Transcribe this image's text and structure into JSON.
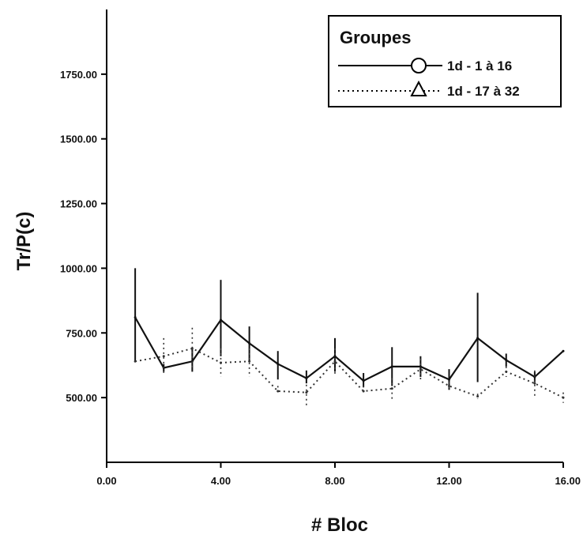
{
  "chart_data": {
    "type": "line",
    "xlabel": "# Bloc",
    "ylabel": "Tr/P(c)",
    "xlim": [
      0,
      16
    ],
    "ylim": [
      250,
      2000
    ],
    "x_ticks": [
      0,
      4,
      8,
      12,
      16
    ],
    "x_tick_labels": [
      "0.00",
      "4.00",
      "8.00",
      "12.00",
      "16.00"
    ],
    "y_ticks": [
      500,
      750,
      1000,
      1250,
      1500,
      1750
    ],
    "y_tick_labels": [
      "500.00",
      "750.00",
      "1000.00",
      "1250.00",
      "1500.00",
      "1750.00"
    ],
    "grid": false,
    "legend": {
      "title": "Groupes",
      "position": "top-right"
    },
    "x": [
      1,
      2,
      3,
      4,
      5,
      6,
      7,
      8,
      9,
      10,
      11,
      12,
      13,
      14,
      15,
      16
    ],
    "series": [
      {
        "name": "1d - 1 à 16",
        "style": "solid",
        "marker": "circle",
        "values": [
          810,
          615,
          640,
          800,
          710,
          630,
          575,
          660,
          565,
          620,
          620,
          570,
          730,
          645,
          580,
          680
        ],
        "error_low": [
          640,
          600,
          600,
          660,
          640,
          570,
          555,
          600,
          540,
          545,
          580,
          530,
          560,
          620,
          560,
          680
        ],
        "error_high": [
          1000,
          630,
          690,
          955,
          775,
          680,
          605,
          730,
          595,
          695,
          660,
          610,
          905,
          670,
          600,
          680
        ],
        "color": "#111111"
      },
      {
        "name": "1d - 17 à 32",
        "style": "dotted",
        "marker": "triangle",
        "values": [
          640,
          660,
          690,
          635,
          640,
          525,
          520,
          640,
          525,
          535,
          610,
          545,
          505,
          600,
          555,
          500
        ],
        "error_low": [
          640,
          590,
          610,
          580,
          580,
          510,
          470,
          590,
          510,
          495,
          560,
          530,
          495,
          580,
          500,
          480
        ],
        "error_high": [
          640,
          730,
          770,
          690,
          690,
          545,
          550,
          690,
          545,
          575,
          650,
          560,
          515,
          620,
          605,
          520
        ],
        "color": "#333333"
      }
    ]
  }
}
